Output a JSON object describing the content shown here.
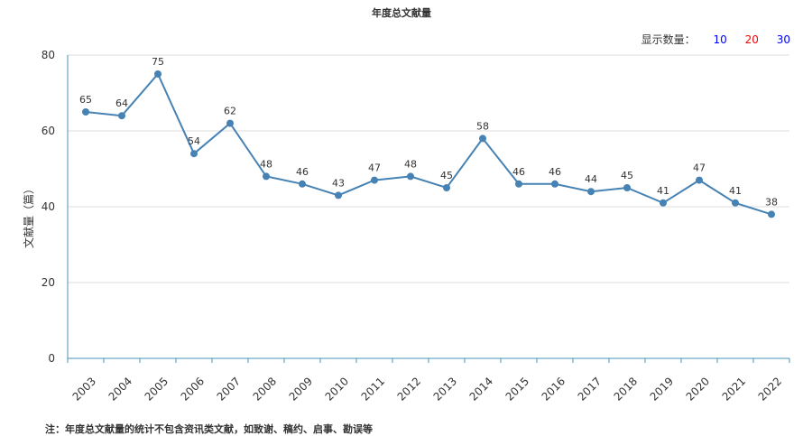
{
  "title": "年度总文献量",
  "count_selector": {
    "label": "显示数量：",
    "options": [
      {
        "label": "10",
        "color": "#0000ff"
      },
      {
        "label": "20",
        "color": "#ff0000"
      },
      {
        "label": "30",
        "color": "#0000ff"
      }
    ]
  },
  "note": "注：年度总文献量的统计不包含资讯类文献，如致谢、稿约、启事、勘误等",
  "chart_data": {
    "type": "line",
    "title": "年度总文献量",
    "ylabel": "文献量（篇）",
    "xlabel": "",
    "ylim": [
      0,
      80
    ],
    "yticks": [
      0,
      20,
      40,
      60,
      80
    ],
    "grid": true,
    "line_color": "#4682b4",
    "categories": [
      "2003",
      "2004",
      "2005",
      "2006",
      "2007",
      "2008",
      "2009",
      "2010",
      "2011",
      "2012",
      "2013",
      "2014",
      "2015",
      "2016",
      "2017",
      "2018",
      "2019",
      "2020",
      "2021",
      "2022"
    ],
    "values": [
      65,
      64,
      75,
      54,
      62,
      48,
      46,
      43,
      47,
      48,
      45,
      58,
      46,
      46,
      44,
      45,
      41,
      47,
      41,
      38
    ]
  }
}
